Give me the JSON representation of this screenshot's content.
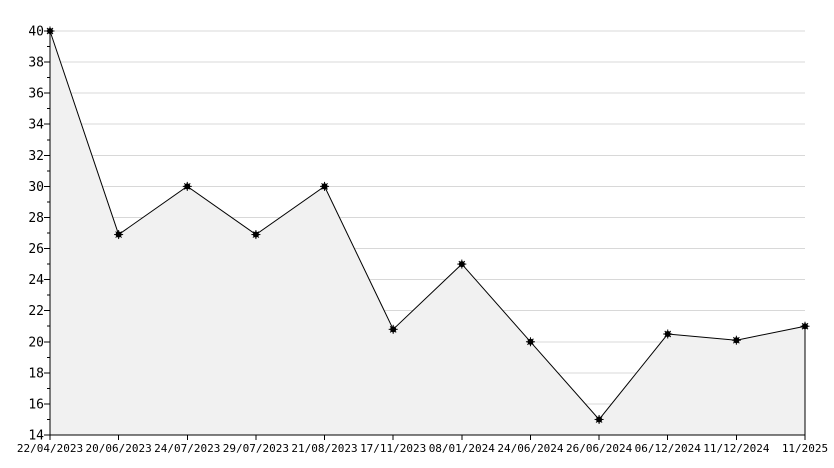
{
  "chart_data": {
    "type": "area",
    "title": "",
    "xlabel": "",
    "ylabel": "",
    "categories": [
      "22/04/2023",
      "20/06/2023",
      "24/07/2023",
      "29/07/2023",
      "21/08/2023",
      "17/11/2023",
      "08/01/2024",
      "24/06/2024",
      "26/06/2024",
      "06/12/2024",
      "11/12/2024",
      "11/2025"
    ],
    "values": [
      40,
      26.9,
      30,
      26.9,
      30,
      20.8,
      25,
      20,
      15,
      20.5,
      20.1,
      21
    ],
    "ylim": [
      14,
      40
    ],
    "y_major_tick_step": 2,
    "y_minor_tick_step": 1,
    "y_tick_labels": [
      "14",
      "16",
      "18",
      "20",
      "22",
      "24",
      "26",
      "28",
      "30",
      "32",
      "34",
      "36",
      "38",
      "40"
    ],
    "grid": "horizontal-major",
    "legend": "none",
    "marker": "filled-star",
    "colors": {
      "line": "#000000",
      "marker": "#000000",
      "area_fill": "#f1f1f1",
      "grid": "#d8d8d8",
      "axis": "#000000",
      "text": "#000000",
      "background": "#ffffff"
    }
  }
}
